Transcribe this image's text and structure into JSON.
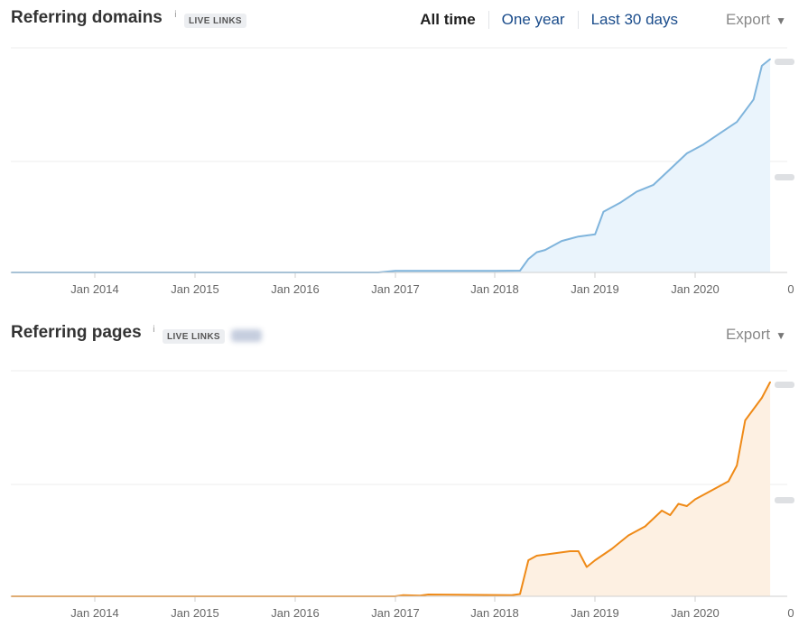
{
  "colors": {
    "domains_line": "#7fb4dc",
    "domains_fill": "#eaf4fc",
    "pages_line": "#ef8a17",
    "pages_fill": "#fdf0e2",
    "grid": "#ececec",
    "axis": "#cfcfcf"
  },
  "header": {
    "domains_title": "Referring domains",
    "pages_title": "Referring pages",
    "info_glyph": "i",
    "live_links": "LIVE LINKS",
    "range_tabs": [
      "All time",
      "One year",
      "Last 30 days"
    ],
    "active_tab": "All time",
    "export_label": "Export",
    "caret": "▼",
    "icons": [
      "info-icon",
      "caret-down-icon"
    ]
  },
  "chart_data": [
    {
      "type": "area",
      "series": [
        {
          "values": [
            [
              "2013-03",
              0
            ],
            [
              "2015-01",
              0
            ],
            [
              "2016-11",
              0
            ],
            [
              "2017-01",
              0.007
            ],
            [
              "2018-01",
              0.007
            ],
            [
              "2018-04",
              0.008
            ],
            [
              "2018-05",
              0.06
            ],
            [
              "2018-06",
              0.09
            ],
            [
              "2018-07",
              0.1
            ],
            [
              "2018-09",
              0.14
            ],
            [
              "2018-11",
              0.16
            ],
            [
              "2019-01",
              0.17
            ],
            [
              "2019-02",
              0.27
            ],
            [
              "2019-04",
              0.31
            ],
            [
              "2019-06",
              0.36
            ],
            [
              "2019-08",
              0.39
            ],
            [
              "2019-10",
              0.46
            ],
            [
              "2019-12",
              0.53
            ],
            [
              "2020-02",
              0.57
            ],
            [
              "2020-04",
              0.62
            ],
            [
              "2020-06",
              0.67
            ],
            [
              "2020-08",
              0.77
            ],
            [
              "2020-09",
              0.92
            ],
            [
              "2020-10",
              0.95
            ]
          ]
        }
      ],
      "x_tick_labels": [
        "Jan 2014",
        "Jan 2015",
        "Jan 2016",
        "Jan 2017",
        "Jan 2018",
        "Jan 2019",
        "Jan 2020"
      ],
      "y_right_labels": [
        "0"
      ],
      "grid": true
    },
    {
      "type": "area",
      "series": [
        {
          "values": [
            [
              "2013-03",
              0
            ],
            [
              "2017-01",
              0
            ],
            [
              "2017-02",
              0.005
            ],
            [
              "2017-04",
              0.003
            ],
            [
              "2017-05",
              0.008
            ],
            [
              "2018-03",
              0.005
            ],
            [
              "2018-04",
              0.01
            ],
            [
              "2018-05",
              0.16
            ],
            [
              "2018-06",
              0.18
            ],
            [
              "2018-08",
              0.19
            ],
            [
              "2018-10",
              0.2
            ],
            [
              "2018-11",
              0.2
            ],
            [
              "2018-12",
              0.13
            ],
            [
              "2019-01",
              0.16
            ],
            [
              "2019-03",
              0.21
            ],
            [
              "2019-05",
              0.27
            ],
            [
              "2019-07",
              0.31
            ],
            [
              "2019-09",
              0.38
            ],
            [
              "2019-10",
              0.36
            ],
            [
              "2019-11",
              0.41
            ],
            [
              "2019-12",
              0.4
            ],
            [
              "2020-01",
              0.43
            ],
            [
              "2020-03",
              0.47
            ],
            [
              "2020-05",
              0.51
            ],
            [
              "2020-06",
              0.58
            ],
            [
              "2020-07",
              0.78
            ],
            [
              "2020-09",
              0.88
            ],
            [
              "2020-10",
              0.95
            ]
          ]
        }
      ],
      "x_tick_labels": [
        "Jan 2014",
        "Jan 2015",
        "Jan 2016",
        "Jan 2017",
        "Jan 2018",
        "Jan 2019",
        "Jan 2020"
      ],
      "y_right_labels": [
        "0"
      ],
      "grid": true
    }
  ]
}
